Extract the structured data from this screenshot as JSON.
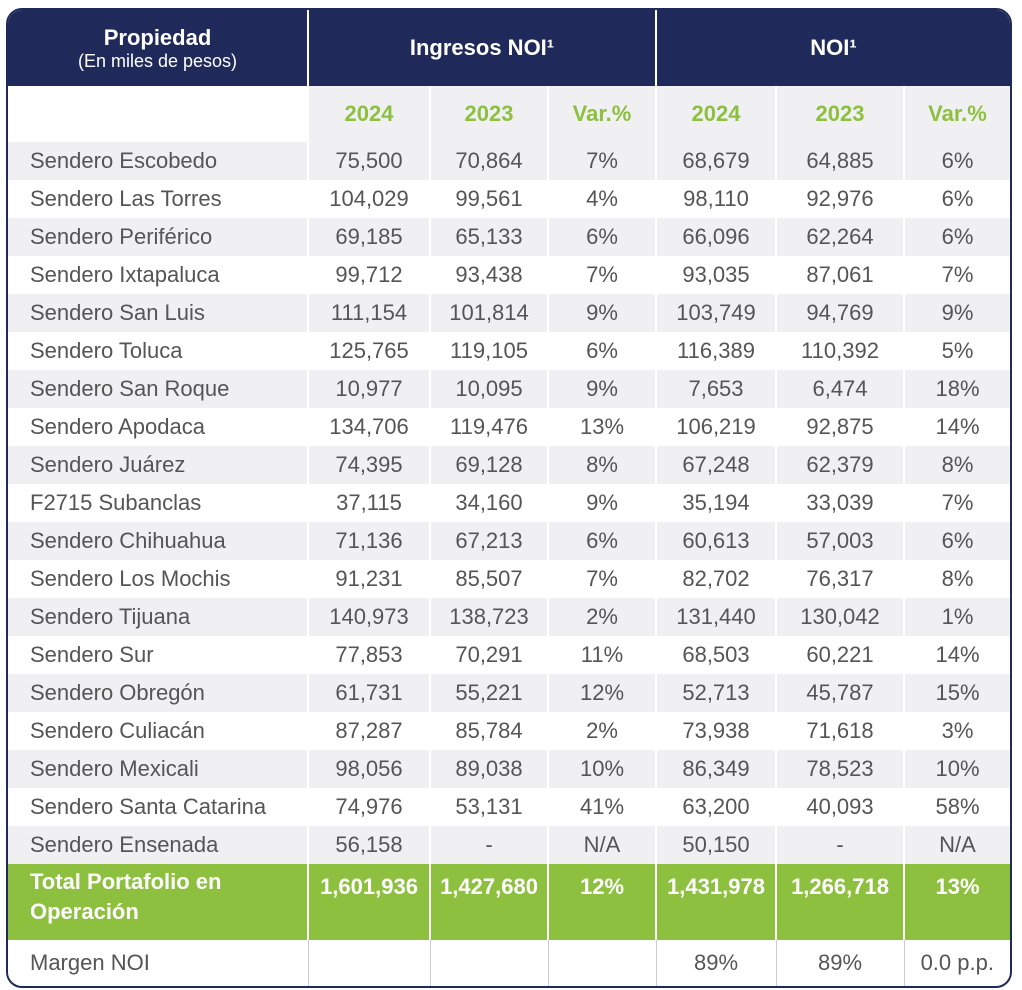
{
  "header": {
    "property_title": "Propiedad",
    "property_subtitle": "(En miles de pesos)",
    "group_income": "Ingresos NOI¹",
    "group_noi": "NOI¹"
  },
  "subheader": [
    "2024",
    "2023",
    "Var.%",
    "2024",
    "2023",
    "Var.%"
  ],
  "table": {
    "rows": [
      [
        "Sendero Escobedo",
        "75,500",
        "70,864",
        "7%",
        "68,679",
        "64,885",
        "6%"
      ],
      [
        "Sendero Las Torres",
        "104,029",
        "99,561",
        "4%",
        "98,110",
        "92,976",
        "6%"
      ],
      [
        "Sendero Periférico",
        "69,185",
        "65,133",
        "6%",
        "66,096",
        "62,264",
        "6%"
      ],
      [
        "Sendero Ixtapaluca",
        "99,712",
        "93,438",
        "7%",
        "93,035",
        "87,061",
        "7%"
      ],
      [
        "Sendero San Luis",
        "111,154",
        "101,814",
        "9%",
        "103,749",
        "94,769",
        "9%"
      ],
      [
        "Sendero Toluca",
        "125,765",
        "119,105",
        "6%",
        "116,389",
        "110,392",
        "5%"
      ],
      [
        "Sendero San Roque",
        "10,977",
        "10,095",
        "9%",
        "7,653",
        "6,474",
        "18%"
      ],
      [
        "Sendero Apodaca",
        "134,706",
        "119,476",
        "13%",
        "106,219",
        "92,875",
        "14%"
      ],
      [
        "Sendero Juárez",
        "74,395",
        "69,128",
        "8%",
        "67,248",
        "62,379",
        "8%"
      ],
      [
        "F2715 Subanclas",
        "37,115",
        "34,160",
        "9%",
        "35,194",
        "33,039",
        "7%"
      ],
      [
        "Sendero Chihuahua",
        "71,136",
        "67,213",
        "6%",
        "60,613",
        "57,003",
        "6%"
      ],
      [
        "Sendero Los Mochis",
        "91,231",
        "85,507",
        "7%",
        "82,702",
        "76,317",
        "8%"
      ],
      [
        "Sendero Tijuana",
        "140,973",
        "138,723",
        "2%",
        "131,440",
        "130,042",
        "1%"
      ],
      [
        "Sendero Sur",
        "77,853",
        "70,291",
        "11%",
        "68,503",
        "60,221",
        "14%"
      ],
      [
        "Sendero Obregón",
        "61,731",
        "55,221",
        "12%",
        "52,713",
        "45,787",
        "15%"
      ],
      [
        "Sendero Culiacán",
        "87,287",
        "85,784",
        "2%",
        "73,938",
        "71,618",
        "3%"
      ],
      [
        "Sendero Mexicali",
        "98,056",
        "89,038",
        "10%",
        "86,349",
        "78,523",
        "10%"
      ],
      [
        "Sendero Santa Catarina",
        "74,976",
        "53,131",
        "41%",
        "63,200",
        "40,093",
        "58%"
      ],
      [
        "Sendero Ensenada",
        "56,158",
        "-",
        "N/A",
        "50,150",
        "-",
        "N/A"
      ]
    ]
  },
  "total": [
    "Total Portafolio en Operación",
    "1,601,936",
    "1,427,680",
    "12%",
    "1,431,978",
    "1,266,718",
    "13%"
  ],
  "margin": {
    "label": "Margen NOI",
    "noi_2024": "89%",
    "noi_2023": "89%",
    "noi_var": "0.0 p.p."
  }
}
